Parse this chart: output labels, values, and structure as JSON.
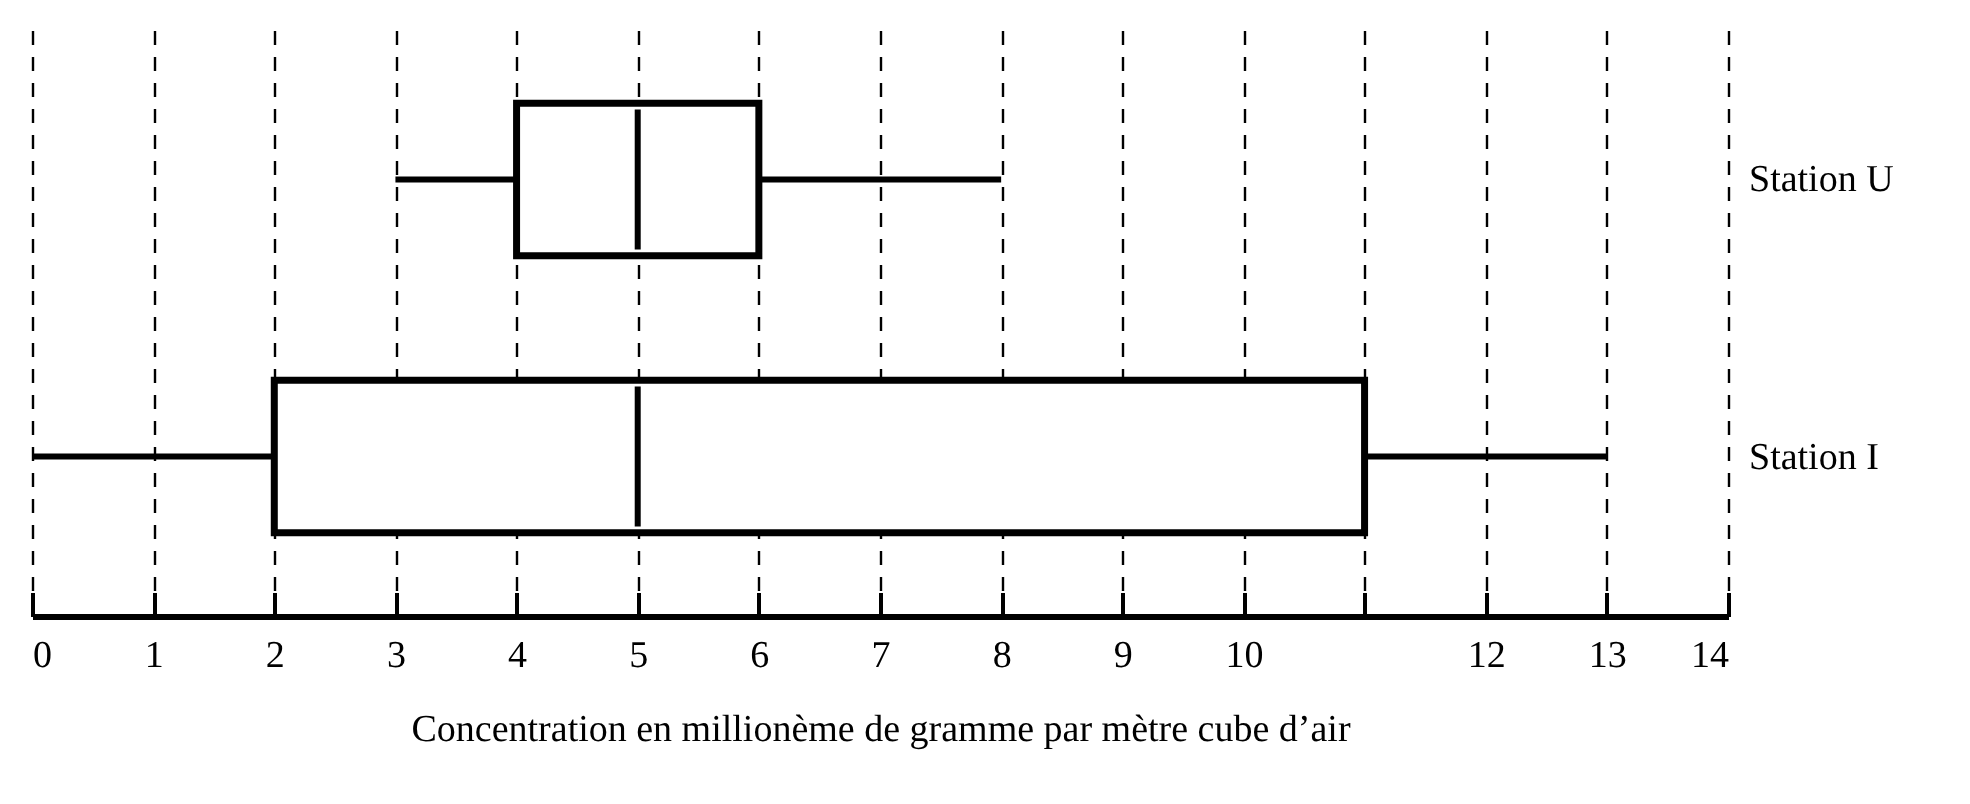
{
  "chart_data": {
    "type": "box",
    "orientation": "horizontal",
    "xlabel": "Concentration en millionème de gramme par mètre cube d’air",
    "categories": [
      "Station U",
      "Station I"
    ],
    "boxes": [
      {
        "low": 3,
        "q1": 4,
        "median": 5,
        "q3": 6,
        "high": 8
      },
      {
        "low": 0,
        "q1": 2,
        "median": 5,
        "q3": 11,
        "high": 13
      }
    ],
    "xlim": [
      0,
      14
    ],
    "xticks": [
      0,
      1,
      2,
      3,
      4,
      5,
      6,
      7,
      8,
      9,
      10,
      {
        "value": 11,
        "label": null
      },
      12,
      13,
      14
    ],
    "grid": "x",
    "line_style": "solid"
  }
}
